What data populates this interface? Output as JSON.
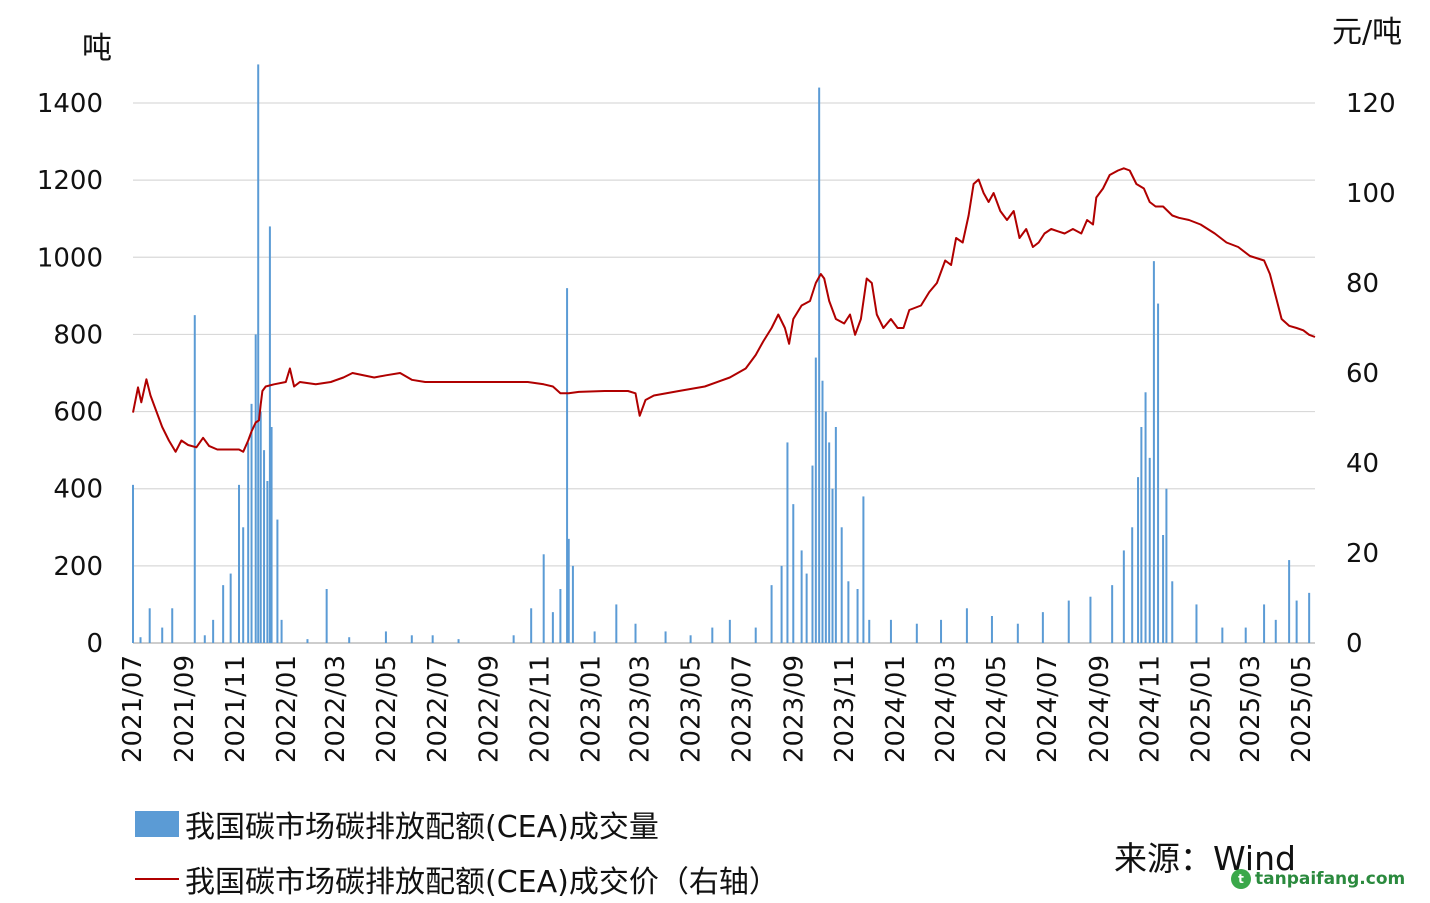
{
  "chart_data": {
    "type": "bar+line",
    "title": "",
    "left_axis": {
      "unit": "吨",
      "ylim": [
        0,
        1400
      ],
      "ticks": [
        0,
        200,
        400,
        600,
        800,
        1000,
        1200,
        1400
      ]
    },
    "right_axis": {
      "unit": "元/吨",
      "ylim": [
        0,
        120
      ],
      "ticks": [
        0,
        20,
        40,
        60,
        80,
        100,
        120
      ]
    },
    "x_ticks": [
      "2021/07",
      "2021/09",
      "2021/11",
      "2022/01",
      "2022/03",
      "2022/05",
      "2022/07",
      "2022/09",
      "2022/11",
      "2023/01",
      "2023/03",
      "2023/05",
      "2023/07",
      "2023/09",
      "2023/11",
      "2024/01",
      "2024/03",
      "2024/05",
      "2024/07",
      "2024/09",
      "2024/11",
      "2025/01",
      "2025/03",
      "2025/05"
    ],
    "x_range": [
      "2021/07",
      "2025/06"
    ],
    "grid": "horizontal",
    "legend_placement": "bottom-left",
    "series": [
      {
        "name": "我国碳市场碳排放配额(CEA)成交量",
        "type": "bar",
        "axis": "left",
        "color": "#5b9bd5",
        "note_points": "approximate peaks read from chart",
        "points": [
          [
            "2021/07/16",
            410
          ],
          [
            "2021/07/25",
            15
          ],
          [
            "2021/08/05",
            90
          ],
          [
            "2021/08/20",
            40
          ],
          [
            "2021/09/01",
            90
          ],
          [
            "2021/09/28",
            850
          ],
          [
            "2021/10/10",
            20
          ],
          [
            "2021/10/20",
            60
          ],
          [
            "2021/11/01",
            150
          ],
          [
            "2021/11/10",
            180
          ],
          [
            "2021/11/20",
            410
          ],
          [
            "2021/11/25",
            300
          ],
          [
            "2021/12/01",
            520
          ],
          [
            "2021/12/05",
            620
          ],
          [
            "2021/12/10",
            800
          ],
          [
            "2021/12/13",
            1500
          ],
          [
            "2021/12/16",
            600
          ],
          [
            "2021/12/20",
            500
          ],
          [
            "2021/12/24",
            420
          ],
          [
            "2021/12/27",
            1080
          ],
          [
            "2021/12/29",
            560
          ],
          [
            "2022/01/05",
            320
          ],
          [
            "2022/01/10",
            60
          ],
          [
            "2022/02/10",
            10
          ],
          [
            "2022/03/05",
            140
          ],
          [
            "2022/04/01",
            15
          ],
          [
            "2022/05/15",
            30
          ],
          [
            "2022/06/15",
            20
          ],
          [
            "2022/07/10",
            20
          ],
          [
            "2022/08/10",
            10
          ],
          [
            "2022/10/15",
            20
          ],
          [
            "2022/11/05",
            90
          ],
          [
            "2022/11/20",
            230
          ],
          [
            "2022/12/01",
            80
          ],
          [
            "2022/12/10",
            140
          ],
          [
            "2022/12/18",
            920
          ],
          [
            "2022/12/20",
            270
          ],
          [
            "2022/12/25",
            200
          ],
          [
            "2023/01/20",
            30
          ],
          [
            "2023/02/15",
            100
          ],
          [
            "2023/03/10",
            50
          ],
          [
            "2023/04/15",
            30
          ],
          [
            "2023/05/15",
            20
          ],
          [
            "2023/06/10",
            40
          ],
          [
            "2023/07/01",
            60
          ],
          [
            "2023/08/01",
            40
          ],
          [
            "2023/08/20",
            150
          ],
          [
            "2023/09/01",
            200
          ],
          [
            "2023/09/08",
            520
          ],
          [
            "2023/09/15",
            360
          ],
          [
            "2023/09/25",
            240
          ],
          [
            "2023/10/01",
            180
          ],
          [
            "2023/10/08",
            460
          ],
          [
            "2023/10/12",
            740
          ],
          [
            "2023/10/16",
            1440
          ],
          [
            "2023/10/20",
            680
          ],
          [
            "2023/10/24",
            600
          ],
          [
            "2023/10/28",
            520
          ],
          [
            "2023/11/01",
            400
          ],
          [
            "2023/11/05",
            560
          ],
          [
            "2023/11/12",
            300
          ],
          [
            "2023/11/20",
            160
          ],
          [
            "2023/12/01",
            140
          ],
          [
            "2023/12/08",
            380
          ],
          [
            "2023/12/15",
            60
          ],
          [
            "2024/01/10",
            60
          ],
          [
            "2024/02/10",
            50
          ],
          [
            "2024/03/10",
            60
          ],
          [
            "2024/04/10",
            90
          ],
          [
            "2024/05/10",
            70
          ],
          [
            "2024/06/10",
            50
          ],
          [
            "2024/07/10",
            80
          ],
          [
            "2024/08/10",
            110
          ],
          [
            "2024/09/05",
            120
          ],
          [
            "2024/10/01",
            150
          ],
          [
            "2024/10/15",
            240
          ],
          [
            "2024/10/25",
            300
          ],
          [
            "2024/11/01",
            430
          ],
          [
            "2024/11/05",
            560
          ],
          [
            "2024/11/10",
            650
          ],
          [
            "2024/11/15",
            480
          ],
          [
            "2024/11/20",
            990
          ],
          [
            "2024/11/25",
            880
          ],
          [
            "2024/12/01",
            280
          ],
          [
            "2024/12/05",
            400
          ],
          [
            "2024/12/12",
            160
          ],
          [
            "2025/01/10",
            100
          ],
          [
            "2025/02/10",
            40
          ],
          [
            "2025/03/10",
            40
          ],
          [
            "2025/04/01",
            100
          ],
          [
            "2025/04/15",
            60
          ],
          [
            "2025/05/01",
            215
          ],
          [
            "2025/05/10",
            110
          ],
          [
            "2025/05/25",
            130
          ]
        ]
      },
      {
        "name": "我国碳市场碳排放配额(CEA)成交价（右轴）",
        "type": "line",
        "axis": "right",
        "color": "#b00000",
        "points": [
          [
            "2021/07/16",
            51.2
          ],
          [
            "2021/07/22",
            56.8
          ],
          [
            "2021/07/26",
            53.5
          ],
          [
            "2021/08/01",
            58.6
          ],
          [
            "2021/08/06",
            55
          ],
          [
            "2021/08/12",
            52
          ],
          [
            "2021/08/20",
            48
          ],
          [
            "2021/08/28",
            45
          ],
          [
            "2021/09/05",
            42.5
          ],
          [
            "2021/09/12",
            45
          ],
          [
            "2021/09/20",
            44
          ],
          [
            "2021/09/30",
            43.5
          ],
          [
            "2021/10/08",
            45.6
          ],
          [
            "2021/10/15",
            43.8
          ],
          [
            "2021/10/25",
            43
          ],
          [
            "2021/11/10",
            43
          ],
          [
            "2021/11/20",
            43
          ],
          [
            "2021/11/25",
            42.5
          ],
          [
            "2021/12/01",
            45
          ],
          [
            "2021/12/05",
            47
          ],
          [
            "2021/12/10",
            49
          ],
          [
            "2021/12/14",
            49.5
          ],
          [
            "2021/12/16",
            53
          ],
          [
            "2021/12/18",
            56
          ],
          [
            "2021/12/22",
            57
          ],
          [
            "2022/01/01",
            57.5
          ],
          [
            "2022/01/15",
            58
          ],
          [
            "2022/01/20",
            61
          ],
          [
            "2022/01/25",
            57
          ],
          [
            "2022/02/01",
            58
          ],
          [
            "2022/02/20",
            57.5
          ],
          [
            "2022/03/10",
            58
          ],
          [
            "2022/03/25",
            59
          ],
          [
            "2022/04/05",
            60
          ],
          [
            "2022/05/01",
            59
          ],
          [
            "2022/05/15",
            59.5
          ],
          [
            "2022/06/01",
            60
          ],
          [
            "2022/06/15",
            58.5
          ],
          [
            "2022/07/01",
            58
          ],
          [
            "2022/08/01",
            58
          ],
          [
            "2022/09/01",
            58
          ],
          [
            "2022/10/01",
            58
          ],
          [
            "2022/11/01",
            58
          ],
          [
            "2022/11/20",
            57.5
          ],
          [
            "2022/12/01",
            57
          ],
          [
            "2022/12/10",
            55.5
          ],
          [
            "2022/12/20",
            55.5
          ],
          [
            "2023/01/01",
            55.8
          ],
          [
            "2023/02/01",
            56
          ],
          [
            "2023/03/01",
            56
          ],
          [
            "2023/03/10",
            55.5
          ],
          [
            "2023/03/15",
            50.5
          ],
          [
            "2023/03/22",
            54
          ],
          [
            "2023/04/01",
            55
          ],
          [
            "2023/05/01",
            56
          ],
          [
            "2023/06/01",
            57
          ],
          [
            "2023/07/01",
            59
          ],
          [
            "2023/07/20",
            61
          ],
          [
            "2023/08/01",
            64
          ],
          [
            "2023/08/10",
            67
          ],
          [
            "2023/08/20",
            70
          ],
          [
            "2023/08/28",
            73
          ],
          [
            "2023/09/05",
            70
          ],
          [
            "2023/09/10",
            66.5
          ],
          [
            "2023/09/15",
            72
          ],
          [
            "2023/09/25",
            75
          ],
          [
            "2023/10/05",
            76
          ],
          [
            "2023/10/12",
            80
          ],
          [
            "2023/10/18",
            82
          ],
          [
            "2023/10/22",
            81
          ],
          [
            "2023/10/28",
            76
          ],
          [
            "2023/11/05",
            72
          ],
          [
            "2023/11/15",
            71
          ],
          [
            "2023/11/22",
            73
          ],
          [
            "2023/11/28",
            68.5
          ],
          [
            "2023/12/05",
            72
          ],
          [
            "2023/12/12",
            81
          ],
          [
            "2023/12/18",
            80
          ],
          [
            "2023/12/24",
            73
          ],
          [
            "2024/01/01",
            70
          ],
          [
            "2024/01/10",
            72
          ],
          [
            "2024/01/18",
            70
          ],
          [
            "2024/01/25",
            70
          ],
          [
            "2024/02/01",
            74
          ],
          [
            "2024/02/15",
            75
          ],
          [
            "2024/02/25",
            78
          ],
          [
            "2024/03/05",
            80
          ],
          [
            "2024/03/15",
            85
          ],
          [
            "2024/03/22",
            84
          ],
          [
            "2024/03/28",
            90
          ],
          [
            "2024/04/05",
            89
          ],
          [
            "2024/04/12",
            95
          ],
          [
            "2024/04/18",
            102
          ],
          [
            "2024/04/24",
            103
          ],
          [
            "2024/04/30",
            100
          ],
          [
            "2024/05/06",
            98
          ],
          [
            "2024/05/12",
            100
          ],
          [
            "2024/05/20",
            96
          ],
          [
            "2024/05/28",
            94
          ],
          [
            "2024/06/05",
            96
          ],
          [
            "2024/06/12",
            90
          ],
          [
            "2024/06/20",
            92
          ],
          [
            "2024/06/28",
            88
          ],
          [
            "2024/07/05",
            89
          ],
          [
            "2024/07/12",
            91
          ],
          [
            "2024/07/20",
            92
          ],
          [
            "2024/07/28",
            91.5
          ],
          [
            "2024/08/05",
            91
          ],
          [
            "2024/08/15",
            92
          ],
          [
            "2024/08/25",
            91
          ],
          [
            "2024/09/01",
            94
          ],
          [
            "2024/09/08",
            93
          ],
          [
            "2024/09/12",
            99
          ],
          [
            "2024/09/20",
            101
          ],
          [
            "2024/09/28",
            104
          ],
          [
            "2024/10/08",
            105
          ],
          [
            "2024/10/15",
            105.5
          ],
          [
            "2024/10/22",
            105
          ],
          [
            "2024/10/30",
            102
          ],
          [
            "2024/11/08",
            101
          ],
          [
            "2024/11/15",
            98
          ],
          [
            "2024/11/22",
            97
          ],
          [
            "2024/12/01",
            97
          ],
          [
            "2024/12/12",
            95
          ],
          [
            "2024/12/20",
            94.5
          ],
          [
            "2025/01/01",
            94
          ],
          [
            "2025/01/15",
            93
          ],
          [
            "2025/02/01",
            91
          ],
          [
            "2025/02/15",
            89
          ],
          [
            "2025/03/01",
            88
          ],
          [
            "2025/03/15",
            86
          ],
          [
            "2025/04/01",
            85
          ],
          [
            "2025/04/08",
            82
          ],
          [
            "2025/04/15",
            77
          ],
          [
            "2025/04/22",
            72
          ],
          [
            "2025/05/01",
            70.5
          ],
          [
            "2025/05/10",
            70
          ],
          [
            "2025/05/18",
            69.5
          ],
          [
            "2025/05/25",
            68.5
          ],
          [
            "2025/06/01",
            68
          ]
        ]
      }
    ]
  },
  "legend": {
    "volume_label": "我国碳市场碳排放配额(CEA)成交量",
    "price_label": "我国碳市场碳排放配额(CEA)成交价（右轴）"
  },
  "source": "来源：Wind",
  "watermark": "tanpaifang.com",
  "colors": {
    "bar": "#5b9bd5",
    "line": "#b00000",
    "grid": "#d9d9d9"
  }
}
